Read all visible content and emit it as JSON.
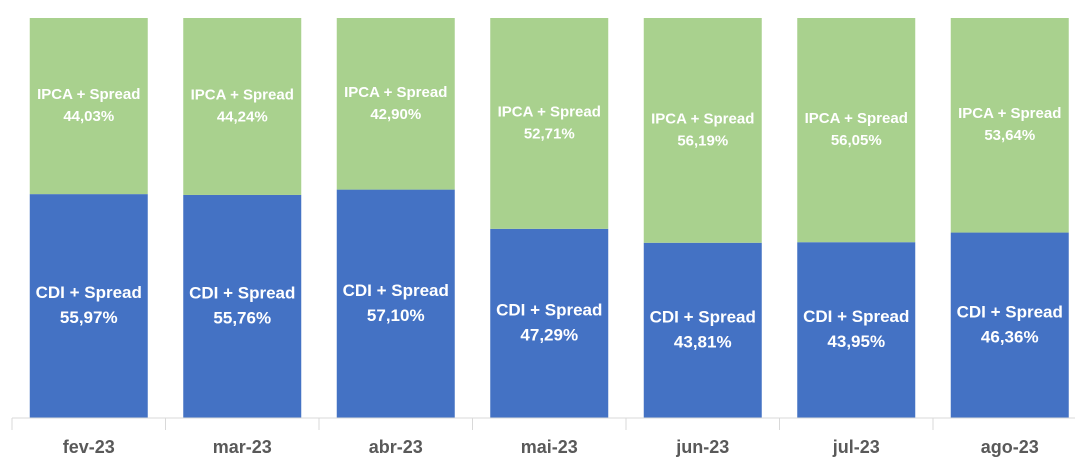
{
  "chart_data": {
    "type": "stacked_bar",
    "categories": [
      "fev-23",
      "mar-23",
      "abr-23",
      "mai-23",
      "jun-23",
      "jul-23",
      "ago-23"
    ],
    "series": [
      {
        "name": "CDI + Spread",
        "color": "#4472c4",
        "values": [
          55.97,
          55.76,
          57.1,
          47.29,
          43.81,
          43.95,
          46.36
        ],
        "value_labels": [
          "55,97%",
          "55,76%",
          "57,10%",
          "47,29%",
          "43,81%",
          "43,95%",
          "46,36%"
        ]
      },
      {
        "name": "IPCA + Spread",
        "color": "#a9d18e",
        "values": [
          44.03,
          44.24,
          42.9,
          52.71,
          56.19,
          56.05,
          53.64
        ],
        "value_labels": [
          "44,03%",
          "44,24%",
          "42,90%",
          "52,71%",
          "56,19%",
          "56,05%",
          "53,64%"
        ]
      }
    ],
    "ylim": [
      0,
      100
    ]
  }
}
